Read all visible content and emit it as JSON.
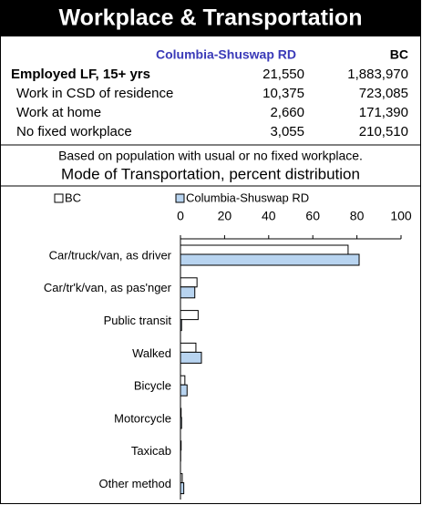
{
  "header": {
    "title": "Workplace & Transportation"
  },
  "table": {
    "columns": [
      "Columbia-Shuswap RD",
      "BC"
    ],
    "rows": [
      [
        "Employed LF, 15+ yrs",
        "21,550",
        "1,883,970"
      ],
      [
        "Work in CSD of residence",
        "10,375",
        "723,085"
      ],
      [
        "Work at home",
        "2,660",
        "171,390"
      ],
      [
        "No fixed workplace",
        "3,055",
        "210,510"
      ]
    ]
  },
  "note": "Based on population with usual or no fixed workplace.",
  "chart_data": {
    "type": "bar",
    "orientation": "horizontal",
    "title": "Mode of Transportation, percent distribution",
    "categories": [
      "Car/truck/van, as driver",
      "Car/tr'k/van, as pas'nger",
      "Public transit",
      "Walked",
      "Bicycle",
      "Motorcycle",
      "Taxicab",
      "Other method"
    ],
    "series": [
      {
        "name": "BC",
        "color": "#ffffff",
        "values": [
          76,
          7.5,
          8,
          7,
          2,
          0.3,
          0.3,
          0.8
        ]
      },
      {
        "name": "Columbia-Shuswap RD",
        "color": "#b8d4f0",
        "values": [
          81,
          6.5,
          0.5,
          9.5,
          3,
          0.5,
          0.1,
          1.5
        ]
      }
    ],
    "xlim": [
      0,
      100
    ],
    "xticks": [
      0,
      20,
      40,
      60,
      80,
      100
    ]
  }
}
